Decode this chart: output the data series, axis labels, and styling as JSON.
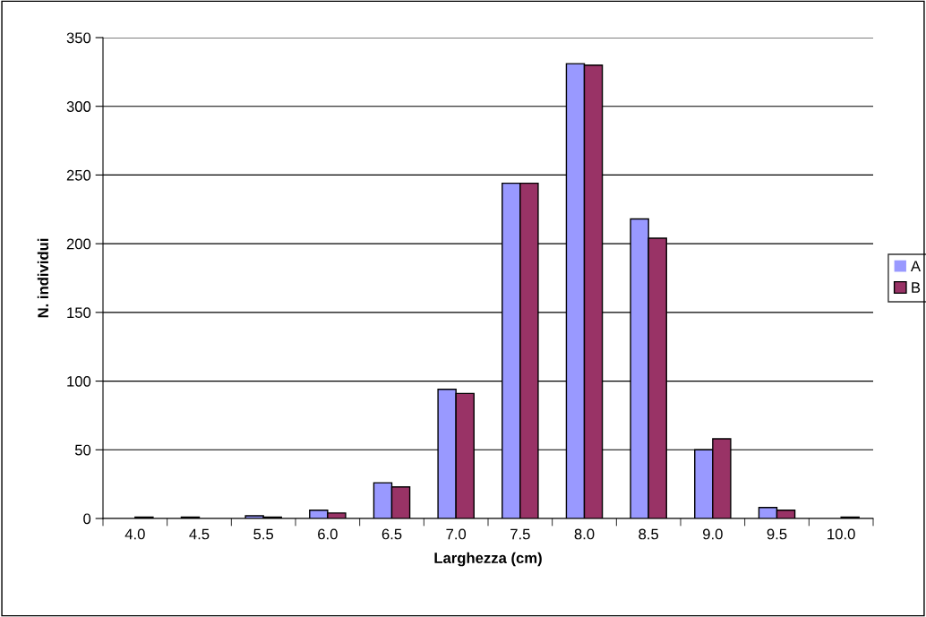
{
  "chart_data": {
    "type": "bar",
    "xlabel": "Larghezza (cm)",
    "ylabel": "N. individui",
    "categories": [
      "4.0",
      "4.5",
      "5.5",
      "6.0",
      "6.5",
      "7.0",
      "7.5",
      "8.0",
      "8.5",
      "9.0",
      "9.5",
      "10.0"
    ],
    "series": [
      {
        "name": "A",
        "color": "#9999ff",
        "values": [
          0,
          1,
          2,
          6,
          26,
          94,
          244,
          331,
          218,
          50,
          8,
          0
        ]
      },
      {
        "name": "B",
        "color": "#993366",
        "values": [
          1,
          0,
          1,
          4,
          23,
          91,
          244,
          330,
          204,
          58,
          6,
          1
        ]
      }
    ],
    "ylim": [
      0,
      350
    ],
    "yticks": [
      0,
      50,
      100,
      150,
      200,
      250,
      300,
      350
    ],
    "grid": "y",
    "legend": "right"
  }
}
